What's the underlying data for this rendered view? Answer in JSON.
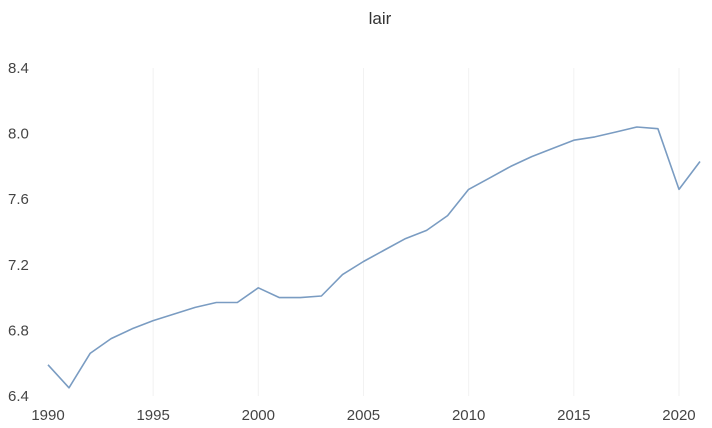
{
  "chart_data": {
    "type": "line",
    "title": "lair",
    "xlabel": "",
    "ylabel": "",
    "xlim": [
      1990,
      2021
    ],
    "ylim": [
      6.4,
      8.4
    ],
    "x_ticks": [
      1990,
      1995,
      2000,
      2005,
      2010,
      2015,
      2020
    ],
    "y_ticks": [
      6.4,
      6.8,
      7.2,
      7.6,
      8.0,
      8.4
    ],
    "grid": "vertical lines only",
    "legend": "none",
    "series": [
      {
        "color": "#7a9cc2",
        "x": [
          1990,
          1991,
          1992,
          1993,
          1994,
          1995,
          1996,
          1997,
          1998,
          1999,
          2000,
          2001,
          2002,
          2003,
          2004,
          2005,
          2006,
          2007,
          2008,
          2009,
          2010,
          2011,
          2012,
          2013,
          2014,
          2015,
          2016,
          2017,
          2018,
          2019,
          2020,
          2021
        ],
        "y": [
          6.59,
          6.45,
          6.66,
          6.75,
          6.81,
          6.86,
          6.9,
          6.94,
          6.97,
          6.97,
          7.06,
          7.0,
          7.0,
          7.01,
          7.14,
          7.22,
          7.29,
          7.36,
          7.41,
          7.5,
          7.66,
          7.73,
          7.8,
          7.86,
          7.91,
          7.96,
          7.98,
          8.01,
          8.04,
          8.03,
          7.66,
          7.83
        ]
      }
    ]
  }
}
